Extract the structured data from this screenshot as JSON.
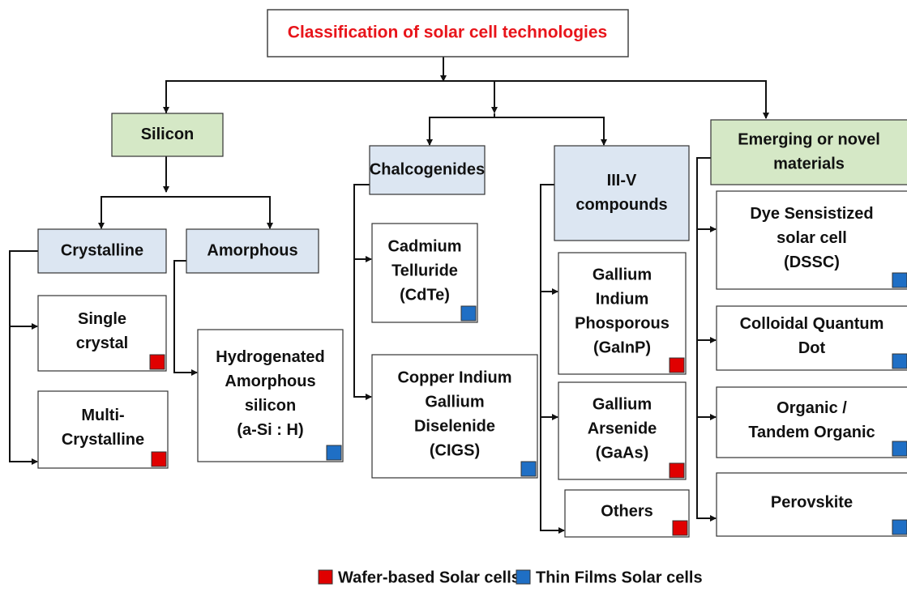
{
  "title": "Classification of solar cell technologies",
  "nodes": [
    {
      "lines": [
        "Silicon"
      ]
    },
    {
      "lines": [
        "Chalcogenides"
      ]
    },
    {
      "lines": [
        "III-V",
        "compounds"
      ]
    },
    {
      "lines": [
        "Emerging or novel",
        "materials"
      ]
    },
    {
      "lines": [
        "Crystalline"
      ]
    },
    {
      "lines": [
        "Amorphous"
      ]
    },
    {
      "lines": [
        "Single",
        "crystal"
      ],
      "color": "#e00000"
    },
    {
      "lines": [
        "Multi-",
        "Crystalline"
      ],
      "color": "#e00000"
    },
    {
      "lines": [
        "Hydrogenated",
        "Amorphous",
        "silicon",
        "(a-Si : H)"
      ],
      "color": "#1f6fc5"
    },
    {
      "lines": [
        "Cadmium",
        "Telluride",
        "(CdTe)"
      ],
      "color": "#1f6fc5"
    },
    {
      "lines": [
        "Copper Indium",
        "Gallium",
        "Diselenide",
        "(CIGS)"
      ],
      "color": "#1f6fc5"
    },
    {
      "lines": [
        "Gallium",
        "Indium",
        "Phosporous",
        "(GaInP)"
      ],
      "color": "#e00000"
    },
    {
      "lines": [
        "Gallium",
        "Arsenide",
        "(GaAs)"
      ],
      "color": "#e00000"
    },
    {
      "lines": [
        "Others"
      ],
      "color": "#e00000"
    },
    {
      "lines": [
        "Dye Sensistized",
        "solar cell",
        "(DSSC)"
      ],
      "color": "#1f6fc5"
    },
    {
      "lines": [
        "Colloidal Quantum",
        "Dot"
      ],
      "color": "#1f6fc5"
    },
    {
      "lines": [
        "Organic /",
        "Tandem Organic"
      ],
      "color": "#1f6fc5"
    },
    {
      "lines": [
        "Perovskite"
      ],
      "color": "#1f6fc5"
    }
  ],
  "legend": [
    {
      "label": "Wafer-based Solar cells",
      "color": "#e00000"
    },
    {
      "label": "Thin Films Solar cells",
      "color": "#1f6fc5"
    }
  ]
}
